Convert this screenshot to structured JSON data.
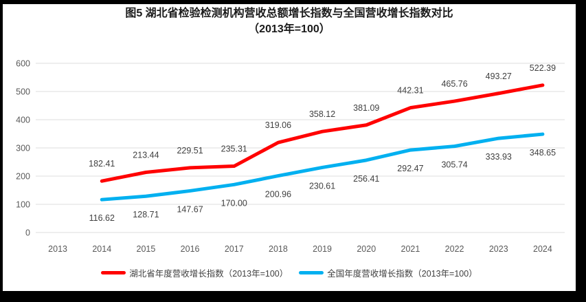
{
  "figure": {
    "title_line1": "图5 湖北省检验检测机构营收总额增长指数与全国营收增长指数对比",
    "title_line2": "（2013年=100）"
  },
  "chart_data": {
    "type": "line",
    "title": "图5 湖北省检验检测机构营收总额增长指数与全国营收增长指数对比（2013年=100）",
    "xlabel": "",
    "ylabel": "",
    "categories": [
      "2013",
      "2014",
      "2015",
      "2016",
      "2017",
      "2018",
      "2019",
      "2020",
      "2021",
      "2022",
      "2023",
      "2024"
    ],
    "y_ticks": [
      0,
      100,
      200,
      300,
      400,
      500,
      600
    ],
    "ylim": [
      0,
      600
    ],
    "grid": true,
    "legend_position": "bottom",
    "colors": {
      "grid": "#DCDCDC",
      "axis_text": "#595959",
      "data_label_text": "#404040"
    },
    "series": [
      {
        "name": "湖北省年度营收增长指数（2013年=100）",
        "color": "#FF0000",
        "label_position": "above",
        "values": [
          null,
          182.41,
          213.44,
          229.51,
          235.31,
          319.06,
          358.12,
          381.09,
          442.31,
          465.76,
          493.27,
          522.39
        ]
      },
      {
        "name": "全国年度营收增长指数（2013年=100）",
        "color": "#00B0F0",
        "label_position": "below",
        "values": [
          null,
          116.62,
          128.71,
          147.67,
          170.0,
          200.96,
          230.61,
          256.41,
          292.47,
          305.74,
          333.93,
          348.65
        ]
      }
    ]
  }
}
